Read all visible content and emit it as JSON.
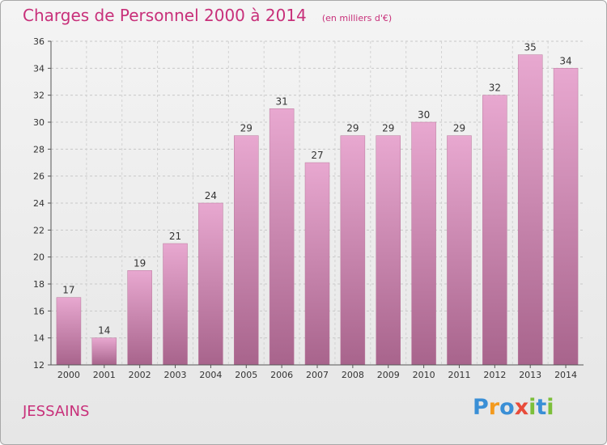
{
  "title": "Charges de Personnel 2000 à 2014",
  "subtitle": "(en milliers d'€)",
  "place": "JESSAINS",
  "logo": {
    "parts": [
      "P",
      "r",
      "o",
      "x",
      "i",
      "t",
      "i"
    ],
    "colors": [
      "#3a8fd6",
      "#f39a1e",
      "#3a8fd6",
      "#e84b3a",
      "#7cbf3a",
      "#3a8fd6",
      "#7cbf3a"
    ]
  },
  "colors": {
    "accent": "#c8307a",
    "bar_top": "#e8a8d0",
    "bar_bottom": "#a8648c"
  },
  "chart_data": {
    "type": "bar",
    "title": "Charges de Personnel 2000 à 2014",
    "subtitle": "(en milliers d'€)",
    "categories": [
      "2000",
      "2001",
      "2002",
      "2003",
      "2004",
      "2005",
      "2006",
      "2007",
      "2008",
      "2009",
      "2010",
      "2011",
      "2012",
      "2013",
      "2014"
    ],
    "values": [
      17,
      14,
      19,
      21,
      24,
      29,
      31,
      27,
      29,
      29,
      30,
      29,
      32,
      35,
      34
    ],
    "ylim": [
      12,
      36
    ],
    "yticks": [
      12,
      14,
      16,
      18,
      20,
      22,
      24,
      26,
      28,
      30,
      32,
      34,
      36
    ],
    "grid": true,
    "data_labels": true
  }
}
